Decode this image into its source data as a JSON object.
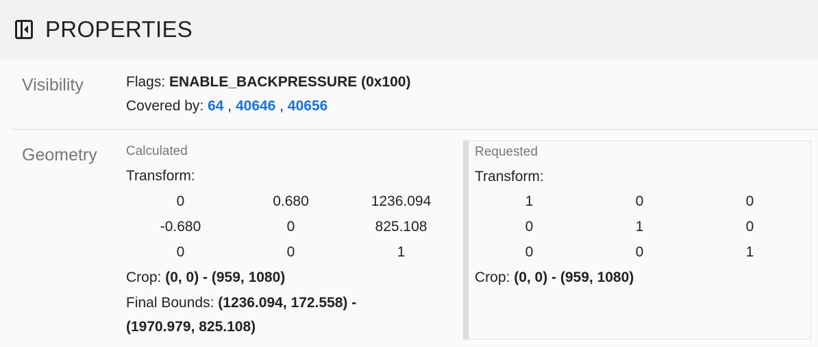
{
  "header": {
    "title": "PROPERTIES",
    "icon": "collapse-panel-icon"
  },
  "visibility": {
    "label": "Visibility",
    "flags_label": "Flags:",
    "flags_value": "ENABLE_BACKPRESSURE (0x100)",
    "covered_label": "Covered by:",
    "covered_by": [
      "64",
      "40646",
      "40656"
    ],
    "separator": ","
  },
  "geometry": {
    "label": "Geometry",
    "calculated": {
      "title": "Calculated",
      "transform_label": "Transform:",
      "matrix": [
        [
          "0",
          "0.680",
          "1236.094"
        ],
        [
          "-0.680",
          "0",
          "825.108"
        ],
        [
          "0",
          "0",
          "1"
        ]
      ],
      "crop_label": "Crop:",
      "crop_value": "(0, 0) - (959, 1080)",
      "final_bounds_label": "Final Bounds:",
      "final_bounds_line1": "(1236.094, 172.558) -",
      "final_bounds_line2": "(1970.979, 825.108)"
    },
    "requested": {
      "title": "Requested",
      "transform_label": "Transform:",
      "matrix": [
        [
          "1",
          "0",
          "0"
        ],
        [
          "0",
          "1",
          "0"
        ],
        [
          "0",
          "0",
          "1"
        ]
      ],
      "crop_label": "Crop:",
      "crop_value": "(0, 0) - (959, 1080)"
    }
  }
}
